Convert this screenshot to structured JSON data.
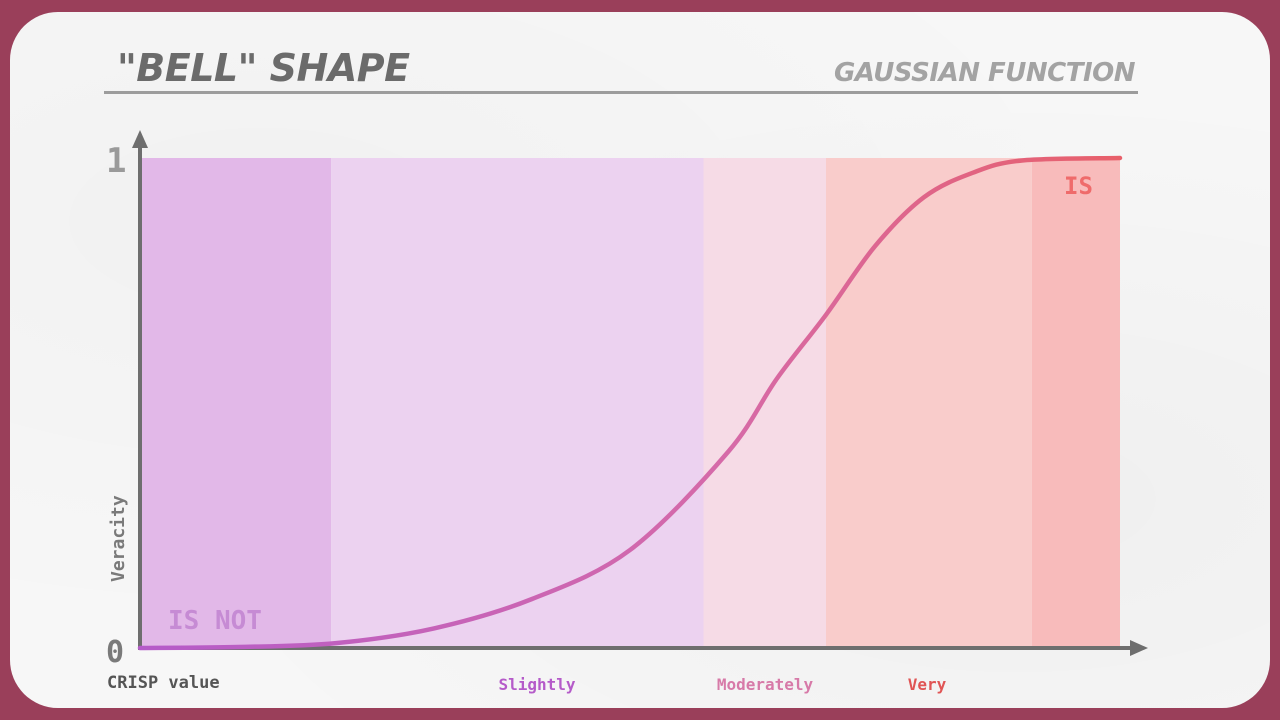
{
  "header": {
    "title": "\"BELL\" SHAPE",
    "subtitle": "GAUSSIAN FUNCTION"
  },
  "chart_data": {
    "type": "line",
    "title": "\"BELL\" SHAPE",
    "subtitle": "GAUSSIAN FUNCTION",
    "xlabel": "CRISP value",
    "ylabel": "Veracity",
    "ylim": [
      0,
      1
    ],
    "y_ticks": [
      "0",
      "1"
    ],
    "grid": false,
    "legend": "none",
    "x_category_labels": [
      "Slightly",
      "Moderately",
      "Very"
    ],
    "region_labels": {
      "low": "IS NOT",
      "high": "IS"
    },
    "bands": [
      {
        "from": 0.0,
        "to": 0.195,
        "color": "#e2b8e8"
      },
      {
        "from": 0.195,
        "to": 0.575,
        "color": "#ecd2f0"
      },
      {
        "from": 0.575,
        "to": 0.7,
        "color": "#f6dbe6"
      },
      {
        "from": 0.7,
        "to": 0.91,
        "color": "#f9cccb"
      },
      {
        "from": 0.91,
        "to": 1.0,
        "color": "#f8bbbb"
      }
    ],
    "series": [
      {
        "x": [
          0.0,
          0.1,
          0.2,
          0.3,
          0.4,
          0.5,
          0.6,
          0.65,
          0.7,
          0.75,
          0.8,
          0.85,
          0.9,
          1.0
        ],
        "y": [
          0.0,
          0.002,
          0.01,
          0.04,
          0.1,
          0.2,
          0.4,
          0.55,
          0.68,
          0.82,
          0.92,
          0.97,
          0.995,
          1.0
        ]
      }
    ],
    "colors": {
      "low": "#b55bc9",
      "mid": "#d66aa8",
      "high": "#e8606a",
      "axis": "#6e6e6e",
      "slightly_label": "#b55bc9",
      "moderately_label": "#d77aa8",
      "very_label": "#e05555",
      "is_label": "#ef6b6b",
      "is_not_label": "#c68bd4"
    }
  }
}
